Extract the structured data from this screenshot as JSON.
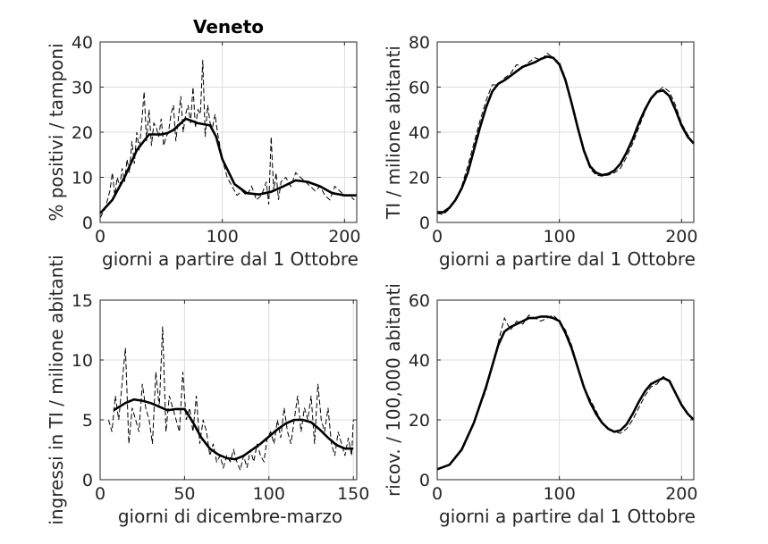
{
  "chart_data": [
    {
      "type": "line",
      "title": "Veneto",
      "xlabel": "giorni a partire dal 1 Ottobre",
      "ylabel": "% positivi / tamponi",
      "xlim": [
        0,
        210
      ],
      "ylim": [
        0,
        40
      ],
      "xticks": [
        0,
        100,
        200
      ],
      "yticks": [
        0,
        10,
        20,
        30,
        40
      ],
      "grid": true,
      "series": [
        {
          "style": "dashed-thin",
          "x": [
            0,
            4,
            8,
            10,
            12,
            14,
            16,
            18,
            20,
            22,
            24,
            26,
            28,
            30,
            32,
            34,
            36,
            38,
            40,
            42,
            44,
            46,
            48,
            50,
            52,
            54,
            56,
            58,
            60,
            62,
            64,
            66,
            68,
            70,
            72,
            74,
            76,
            78,
            80,
            82,
            84,
            86,
            88,
            90,
            92,
            94,
            96,
            100,
            104,
            108,
            112,
            116,
            120,
            124,
            128,
            132,
            136,
            138,
            140,
            142,
            144,
            146,
            148,
            152,
            156,
            160,
            164,
            168,
            172,
            176,
            180,
            184,
            188,
            192,
            196,
            200,
            204,
            208
          ],
          "y": [
            1,
            3,
            7,
            11,
            6,
            10,
            8,
            12,
            9,
            14,
            11,
            18,
            13,
            20,
            16,
            22,
            29,
            18,
            25,
            17,
            22,
            21,
            19,
            23,
            17,
            19,
            20,
            24,
            26,
            18,
            23,
            28,
            20,
            24,
            26,
            22,
            30,
            21,
            25,
            24,
            36,
            19,
            26,
            22,
            21,
            24,
            20,
            14,
            10,
            8,
            6,
            7,
            6,
            8,
            5,
            6,
            9,
            4,
            19,
            7,
            11,
            5,
            9,
            10,
            8,
            11,
            10,
            9,
            8,
            7,
            8,
            6,
            5,
            8,
            7,
            6,
            6,
            5
          ]
        },
        {
          "style": "solid-thick",
          "x": [
            0,
            10,
            20,
            30,
            40,
            50,
            55,
            60,
            70,
            80,
            90,
            95,
            100,
            110,
            120,
            130,
            140,
            150,
            160,
            170,
            180,
            190,
            200,
            210
          ],
          "y": [
            2,
            5,
            10,
            16,
            19.5,
            19.5,
            19.8,
            20.5,
            23,
            22,
            21.5,
            19,
            14,
            8.5,
            6.5,
            6.2,
            6.8,
            8,
            9.3,
            9,
            8,
            6.5,
            6,
            6
          ]
        }
      ]
    },
    {
      "type": "line",
      "xlabel": "giorni a partire dal 1 Ottobre",
      "ylabel": "TI / milione abitanti",
      "xlim": [
        0,
        210
      ],
      "ylim": [
        0,
        80
      ],
      "xticks": [
        0,
        100,
        200
      ],
      "yticks": [
        0,
        20,
        40,
        60,
        80
      ],
      "grid": true,
      "series": [
        {
          "style": "dashed-thin",
          "x": [
            0,
            5,
            10,
            15,
            20,
            25,
            30,
            35,
            40,
            45,
            50,
            55,
            60,
            65,
            70,
            75,
            80,
            85,
            90,
            95,
            100,
            105,
            110,
            115,
            120,
            125,
            130,
            135,
            140,
            145,
            150,
            155,
            160,
            165,
            170,
            175,
            180,
            185,
            190,
            195,
            200,
            205,
            210
          ],
          "y": [
            4,
            3.5,
            6,
            10,
            16,
            25,
            35,
            45,
            54,
            61,
            61,
            64,
            66,
            70,
            69,
            71,
            73,
            72,
            75,
            73,
            71,
            64,
            53,
            42,
            31,
            24,
            21,
            20.5,
            21,
            22,
            24,
            29,
            35,
            42,
            49,
            55,
            58,
            60,
            58,
            52,
            44,
            39,
            35
          ]
        },
        {
          "style": "solid-thick",
          "x": [
            0,
            5,
            10,
            15,
            20,
            25,
            30,
            35,
            40,
            45,
            50,
            55,
            60,
            65,
            70,
            75,
            80,
            85,
            90,
            95,
            100,
            105,
            110,
            115,
            120,
            125,
            130,
            135,
            140,
            145,
            150,
            155,
            160,
            165,
            170,
            175,
            180,
            185,
            190,
            195,
            200,
            205,
            210
          ],
          "y": [
            4.5,
            4.5,
            6.5,
            10,
            15,
            22,
            32,
            42,
            51,
            58,
            61.5,
            63,
            65,
            67,
            69,
            70,
            71,
            72.5,
            73.5,
            73,
            70,
            63,
            53,
            42,
            32,
            25,
            22,
            21,
            21.5,
            23,
            26,
            31,
            37,
            44,
            50,
            55,
            58,
            58.5,
            56,
            50,
            43,
            38,
            35
          ]
        }
      ]
    },
    {
      "type": "line",
      "xlabel": "giorni di dicembre-marzo",
      "ylabel": "ingressi in TI / milione abitanti",
      "xlim": [
        0,
        152
      ],
      "ylim": [
        0,
        15
      ],
      "xticks": [
        0,
        50,
        100,
        150
      ],
      "yticks": [
        0,
        5,
        10,
        15
      ],
      "grid": true,
      "series": [
        {
          "style": "dashed-thin",
          "x": [
            5,
            7,
            9,
            11,
            13,
            15,
            17,
            19,
            21,
            23,
            25,
            27,
            29,
            31,
            33,
            35,
            37,
            39,
            41,
            43,
            45,
            47,
            49,
            51,
            53,
            55,
            57,
            59,
            61,
            63,
            65,
            67,
            69,
            71,
            73,
            75,
            77,
            79,
            81,
            83,
            85,
            87,
            89,
            91,
            93,
            95,
            97,
            99,
            101,
            103,
            105,
            107,
            109,
            111,
            113,
            115,
            117,
            119,
            121,
            123,
            125,
            127,
            129,
            131,
            133,
            135,
            137,
            139,
            141,
            143,
            145,
            147,
            149,
            150
          ],
          "y": [
            5,
            4,
            7,
            5,
            8,
            11,
            3,
            6,
            5,
            4,
            8,
            6,
            5,
            3,
            9,
            6,
            12.8,
            4,
            7,
            6,
            5,
            4,
            9,
            5,
            6,
            4,
            7,
            3,
            5,
            4,
            2,
            3,
            1.5,
            2,
            1,
            2,
            1.5,
            2.5,
            1.5,
            0.8,
            2,
            1,
            2.5,
            1.5,
            3,
            2,
            1.5,
            3.5,
            4,
            3,
            5,
            3.5,
            6,
            4,
            3,
            5,
            7,
            4,
            6,
            5,
            7,
            3,
            8,
            5,
            4,
            6,
            3,
            2,
            4,
            3,
            2,
            3.5,
            2,
            5
          ]
        },
        {
          "style": "solid-thick",
          "x": [
            8,
            15,
            20,
            25,
            30,
            35,
            40,
            45,
            50,
            55,
            60,
            65,
            70,
            75,
            80,
            85,
            90,
            95,
            100,
            105,
            110,
            115,
            120,
            125,
            130,
            135,
            140,
            145,
            150
          ],
          "y": [
            5.8,
            6.4,
            6.7,
            6.6,
            6.4,
            6.1,
            5.8,
            5.9,
            5.9,
            4.8,
            3.5,
            2.6,
            2.1,
            1.8,
            1.7,
            2,
            2.5,
            3,
            3.6,
            4.2,
            4.7,
            5,
            5,
            4.8,
            4.2,
            3.5,
            2.9,
            2.6,
            2.6
          ]
        }
      ]
    },
    {
      "type": "line",
      "xlabel": "giorni a partire dal 1 Ottobre",
      "ylabel": "ricov. / 100,000 abitanti",
      "xlim": [
        0,
        210
      ],
      "ylim": [
        0,
        60
      ],
      "xticks": [
        0,
        100,
        200
      ],
      "yticks": [
        0,
        20,
        40,
        60
      ],
      "grid": true,
      "series": [
        {
          "style": "dashed-thin",
          "x": [
            0,
            10,
            20,
            30,
            40,
            45,
            50,
            55,
            60,
            65,
            70,
            75,
            80,
            85,
            90,
            95,
            100,
            105,
            110,
            115,
            120,
            125,
            130,
            135,
            140,
            145,
            150,
            155,
            160,
            165,
            170,
            175,
            180,
            185,
            190,
            195,
            200,
            205,
            210
          ],
          "y": [
            3.5,
            5,
            10,
            19,
            30,
            38,
            46,
            54,
            50,
            53,
            52,
            55,
            54,
            53,
            54,
            55,
            53,
            50,
            45,
            38,
            31,
            27,
            23,
            19,
            17,
            16,
            15.5,
            17,
            20,
            24,
            28,
            31,
            32,
            34.5,
            33,
            29,
            25,
            22,
            20
          ]
        },
        {
          "style": "solid-thick",
          "x": [
            0,
            10,
            20,
            30,
            40,
            45,
            50,
            55,
            60,
            65,
            70,
            75,
            80,
            85,
            90,
            95,
            100,
            105,
            110,
            115,
            120,
            125,
            130,
            135,
            140,
            145,
            150,
            155,
            160,
            165,
            170,
            175,
            180,
            185,
            190,
            195,
            200,
            205,
            210
          ],
          "y": [
            3.5,
            5,
            10,
            19,
            31,
            38,
            45,
            49.5,
            51,
            52,
            53,
            54,
            54,
            54.5,
            54.5,
            54,
            53,
            49,
            44,
            37.5,
            31,
            26,
            22,
            19,
            17,
            16,
            16.5,
            18.5,
            22,
            26,
            29.5,
            32,
            33,
            34,
            33,
            29,
            25,
            22,
            20
          ]
        }
      ]
    }
  ]
}
